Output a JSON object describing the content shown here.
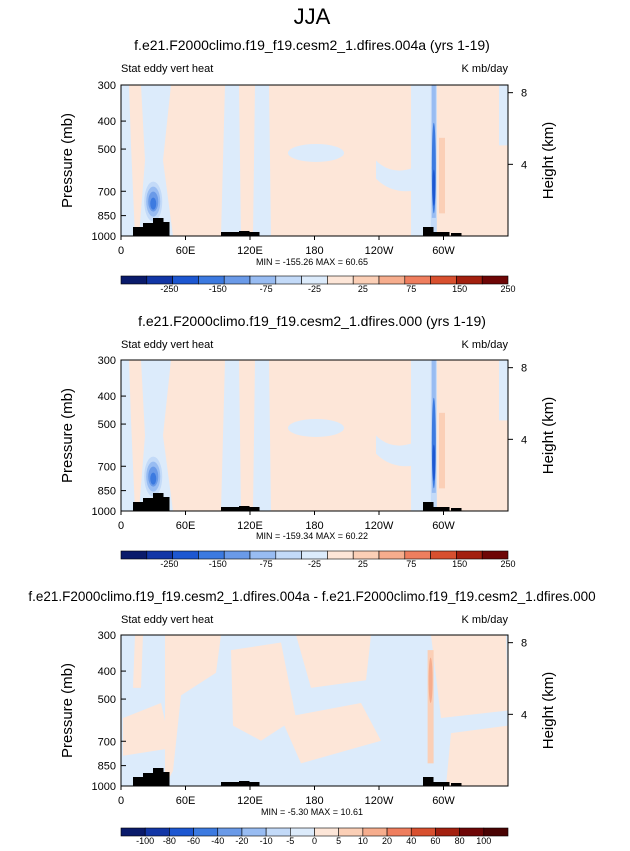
{
  "figure_title": "JJA",
  "chart_data": [
    {
      "type": "heatmap",
      "title": "f.e21.F2000climo.f19_f19.cesm2_1.dfires.004a (yrs 1-19)",
      "left_string": "Stat eddy vert heat",
      "right_string": "K mb/day",
      "xlabel": "",
      "ylabel": "Pressure (mb)",
      "ylabel_right": "Height (km)",
      "x_ticks": [
        "0",
        "60E",
        "120E",
        "180",
        "120W",
        "60W"
      ],
      "y_ticks": [
        "300",
        "400",
        "500",
        "700",
        "850",
        "1000"
      ],
      "y_right_ticks": [
        "8",
        "4"
      ],
      "stats": "MIN = -155.26   MAX = 60.65",
      "colorbar_labels": [
        "-250",
        "-150",
        "-75",
        "-25",
        "25",
        "75",
        "150",
        "250"
      ],
      "colorbar_colors": [
        "#0a1b6b",
        "#1236a6",
        "#1d57d1",
        "#3c7ae0",
        "#6a9ae8",
        "#98bcf2",
        "#c3daf8",
        "#dcebfb",
        "#fde6d8",
        "#fbcfb6",
        "#f6ad8d",
        "#ef7e5e",
        "#d8502f",
        "#a3200f",
        "#6e0606"
      ],
      "background_value": "weak positive (pale orange)",
      "features": [
        {
          "name": "negative band near 30E",
          "lon": [
            20,
            50
          ],
          "p": [
            300,
            1000
          ],
          "sign": "negative",
          "magnitude": "weak"
        },
        {
          "name": "negative core near 25E",
          "lon": [
            22,
            32
          ],
          "p": [
            650,
            900
          ],
          "sign": "negative",
          "magnitude": "strong"
        },
        {
          "name": "negative band near 115E",
          "lon": [
            105,
            125
          ],
          "p": [
            300,
            1000
          ],
          "sign": "negative",
          "magnitude": "weak"
        },
        {
          "name": "negative column near 70W",
          "lon": [
            282,
            295
          ],
          "p": [
            300,
            1000
          ],
          "sign": "negative",
          "magnitude": "strong",
          "min": -155.26
        }
      ]
    },
    {
      "type": "heatmap",
      "title": "f.e21.F2000climo.f19_f19.cesm2_1.dfires.000 (yrs 1-19)",
      "left_string": "Stat eddy vert heat",
      "right_string": "K mb/day",
      "xlabel": "",
      "ylabel": "Pressure (mb)",
      "ylabel_right": "Height (km)",
      "x_ticks": [
        "0",
        "60E",
        "120E",
        "180",
        "120W",
        "60W"
      ],
      "y_ticks": [
        "300",
        "400",
        "500",
        "700",
        "850",
        "1000"
      ],
      "y_right_ticks": [
        "8",
        "4"
      ],
      "stats": "MIN = -159.34   MAX = 60.22",
      "colorbar_labels": [
        "-250",
        "-150",
        "-75",
        "-25",
        "25",
        "75",
        "150",
        "250"
      ],
      "colorbar_colors": [
        "#0a1b6b",
        "#1236a6",
        "#1d57d1",
        "#3c7ae0",
        "#6a9ae8",
        "#98bcf2",
        "#c3daf8",
        "#dcebfb",
        "#fde6d8",
        "#fbcfb6",
        "#f6ad8d",
        "#ef7e5e",
        "#d8502f",
        "#a3200f",
        "#6e0606"
      ],
      "background_value": "weak positive (pale orange)",
      "features": [
        {
          "name": "negative band near 30E",
          "lon": [
            20,
            50
          ],
          "p": [
            300,
            1000
          ],
          "sign": "negative",
          "magnitude": "weak"
        },
        {
          "name": "negative core near 25E",
          "lon": [
            22,
            32
          ],
          "p": [
            650,
            900
          ],
          "sign": "negative",
          "magnitude": "strong"
        },
        {
          "name": "negative column near 70W",
          "lon": [
            282,
            295
          ],
          "p": [
            300,
            1000
          ],
          "sign": "negative",
          "magnitude": "strong",
          "min": -159.34
        }
      ]
    },
    {
      "type": "heatmap",
      "title": "f.e21.F2000climo.f19_f19.cesm2_1.dfires.004a - f.e21.F2000climo.f19_f19.cesm2_1.dfires.000",
      "left_string": "Stat eddy vert heat",
      "right_string": "K mb/day",
      "xlabel": "",
      "ylabel": "Pressure (mb)",
      "ylabel_right": "Height (km)",
      "x_ticks": [
        "0",
        "60E",
        "120E",
        "180",
        "120W",
        "60W"
      ],
      "y_ticks": [
        "300",
        "400",
        "500",
        "700",
        "850",
        "1000"
      ],
      "y_right_ticks": [
        "8",
        "4"
      ],
      "stats": "MIN = -5.30   MAX = 10.61",
      "colorbar_labels": [
        "-100",
        "-80",
        "-60",
        "-40",
        "-20",
        "-10",
        "-5",
        "0",
        "5",
        "10",
        "20",
        "40",
        "60",
        "80",
        "100"
      ],
      "colorbar_colors": [
        "#0a1b6b",
        "#1236a6",
        "#1d57d1",
        "#3c7ae0",
        "#6a9ae8",
        "#98bcf2",
        "#c3daf8",
        "#dcebfb",
        "#fde6d8",
        "#fbcfb6",
        "#f6ad8d",
        "#ef7e5e",
        "#d8502f",
        "#a3200f",
        "#6e0606",
        "#4a0303"
      ],
      "background_value": "mixed weak positive / weak negative",
      "features": [
        {
          "name": "positive column near 72W",
          "lon": [
            285,
            292
          ],
          "p": [
            300,
            1000
          ],
          "sign": "positive",
          "magnitude": "strong",
          "max": 10.61
        }
      ]
    }
  ]
}
